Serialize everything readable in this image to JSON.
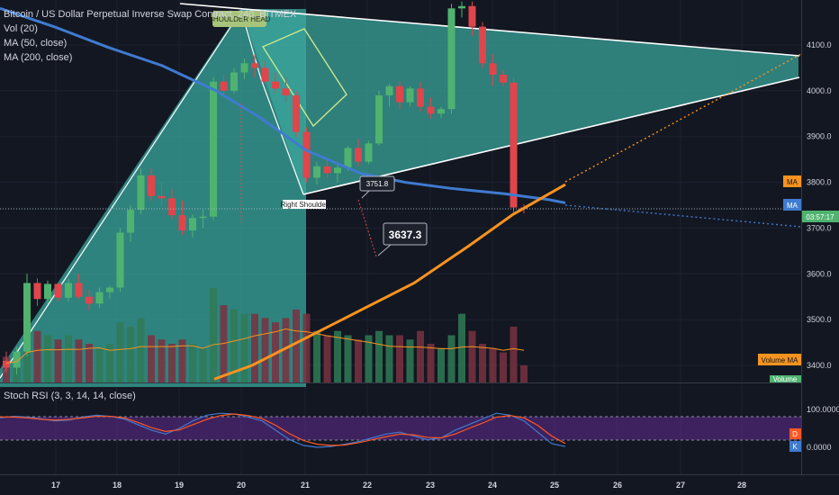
{
  "legend": {
    "symbol_line": "Bitcoin / US Dollar Perpetual Inverse Swap Contract, 240, BITMEX",
    "vol": "Vol (20)",
    "ma50": "MA (50, close)",
    "ma200": "MA (200, close)"
  },
  "stoch": {
    "title": "Stoch RSI (3, 3, 14, 14, close)",
    "ticks": [
      "100.0000",
      "0.0000"
    ],
    "d_tag": "D",
    "k_tag": "K"
  },
  "annotations": {
    "right_shoulder": "Right Shoulder",
    "target_big": "3637.3",
    "target_small": "3751.8",
    "top_badge": "SHOULDER HEAD"
  },
  "axis_tags": {
    "ma_orange": "MA",
    "ma_blue": "MA",
    "countdown": "03:57:17",
    "volume_ma": "Volume MA",
    "volume": "Volume"
  },
  "colors": {
    "background": "#131722",
    "up": "#4fb36f",
    "down": "#e0454c",
    "ma50": "#f7931e",
    "ma200": "#3f7bd0",
    "triangle_fill": "#3aa89e",
    "stoch_band": "#5b2a8a",
    "k_line": "#3f7bd0",
    "d_line": "#ff5722"
  },
  "chart_data": {
    "type": "candlestick",
    "timeframe": "240",
    "y_ticks": [
      3400,
      3500,
      3600,
      3700,
      3800,
      3900,
      4000,
      4100
    ],
    "x_ticks": [
      "17",
      "18",
      "19",
      "20",
      "21",
      "22",
      "23",
      "24",
      "25",
      "26",
      "27",
      "28"
    ],
    "candles": [
      {
        "o": 3410,
        "h": 3430,
        "l": 3385,
        "c": 3395
      },
      {
        "o": 3395,
        "h": 3440,
        "l": 3380,
        "c": 3430
      },
      {
        "o": 3430,
        "h": 3600,
        "l": 3420,
        "c": 3580
      },
      {
        "o": 3580,
        "h": 3590,
        "l": 3530,
        "c": 3545
      },
      {
        "o": 3545,
        "h": 3585,
        "l": 3535,
        "c": 3578
      },
      {
        "o": 3578,
        "h": 3580,
        "l": 3540,
        "c": 3548
      },
      {
        "o": 3548,
        "h": 3590,
        "l": 3540,
        "c": 3580
      },
      {
        "o": 3580,
        "h": 3600,
        "l": 3545,
        "c": 3550
      },
      {
        "o": 3550,
        "h": 3565,
        "l": 3520,
        "c": 3535
      },
      {
        "o": 3535,
        "h": 3570,
        "l": 3525,
        "c": 3560
      },
      {
        "o": 3560,
        "h": 3575,
        "l": 3545,
        "c": 3570
      },
      {
        "o": 3570,
        "h": 3700,
        "l": 3560,
        "c": 3690
      },
      {
        "o": 3690,
        "h": 3750,
        "l": 3670,
        "c": 3740
      },
      {
        "o": 3740,
        "h": 3830,
        "l": 3730,
        "c": 3815
      },
      {
        "o": 3815,
        "h": 3830,
        "l": 3760,
        "c": 3770
      },
      {
        "o": 3770,
        "h": 3800,
        "l": 3750,
        "c": 3765
      },
      {
        "o": 3765,
        "h": 3785,
        "l": 3720,
        "c": 3728
      },
      {
        "o": 3728,
        "h": 3760,
        "l": 3685,
        "c": 3695
      },
      {
        "o": 3695,
        "h": 3730,
        "l": 3680,
        "c": 3722
      },
      {
        "o": 3722,
        "h": 3740,
        "l": 3700,
        "c": 3725
      },
      {
        "o": 3725,
        "h": 4030,
        "l": 3718,
        "c": 4020
      },
      {
        "o": 4020,
        "h": 4035,
        "l": 3990,
        "c": 4000
      },
      {
        "o": 4000,
        "h": 4050,
        "l": 3995,
        "c": 4040
      },
      {
        "o": 4040,
        "h": 4070,
        "l": 4025,
        "c": 4060
      },
      {
        "o": 4060,
        "h": 4080,
        "l": 4030,
        "c": 4050
      },
      {
        "o": 4050,
        "h": 4065,
        "l": 4015,
        "c": 4020
      },
      {
        "o": 4020,
        "h": 4040,
        "l": 3995,
        "c": 4005
      },
      {
        "o": 4005,
        "h": 4030,
        "l": 3975,
        "c": 3990
      },
      {
        "o": 3990,
        "h": 4000,
        "l": 3900,
        "c": 3910
      },
      {
        "o": 3910,
        "h": 3920,
        "l": 3800,
        "c": 3810
      },
      {
        "o": 3810,
        "h": 3845,
        "l": 3795,
        "c": 3835
      },
      {
        "o": 3835,
        "h": 3850,
        "l": 3810,
        "c": 3820
      },
      {
        "o": 3820,
        "h": 3840,
        "l": 3800,
        "c": 3832
      },
      {
        "o": 3832,
        "h": 3880,
        "l": 3825,
        "c": 3875
      },
      {
        "o": 3875,
        "h": 3895,
        "l": 3835,
        "c": 3845
      },
      {
        "o": 3845,
        "h": 3890,
        "l": 3840,
        "c": 3885
      },
      {
        "o": 3885,
        "h": 4000,
        "l": 3880,
        "c": 3990
      },
      {
        "o": 3990,
        "h": 4015,
        "l": 3965,
        "c": 4010
      },
      {
        "o": 4010,
        "h": 4020,
        "l": 3960,
        "c": 3975
      },
      {
        "o": 3975,
        "h": 4010,
        "l": 3965,
        "c": 4005
      },
      {
        "o": 4005,
        "h": 4020,
        "l": 3955,
        "c": 3965
      },
      {
        "o": 3965,
        "h": 3985,
        "l": 3940,
        "c": 3950
      },
      {
        "o": 3950,
        "h": 3965,
        "l": 3940,
        "c": 3960
      },
      {
        "o": 3960,
        "h": 4190,
        "l": 3950,
        "c": 4180
      },
      {
        "o": 4180,
        "h": 4195,
        "l": 4160,
        "c": 4185
      },
      {
        "o": 4185,
        "h": 4195,
        "l": 4120,
        "c": 4140
      },
      {
        "o": 4140,
        "h": 4150,
        "l": 4050,
        "c": 4060
      },
      {
        "o": 4060,
        "h": 4080,
        "l": 4010,
        "c": 4035
      },
      {
        "o": 4035,
        "h": 4045,
        "l": 4010,
        "c": 4018
      },
      {
        "o": 4018,
        "h": 4030,
        "l": 3735,
        "c": 3745
      },
      {
        "o": 3745,
        "h": 3752,
        "l": 3732,
        "c": 3742
      }
    ],
    "volume": [
      30,
      35,
      75,
      60,
      55,
      50,
      55,
      50,
      45,
      40,
      45,
      70,
      65,
      75,
      55,
      50,
      45,
      50,
      45,
      40,
      110,
      90,
      85,
      80,
      80,
      75,
      70,
      75,
      85,
      80,
      60,
      55,
      60,
      55,
      50,
      55,
      60,
      55,
      55,
      50,
      60,
      45,
      40,
      55,
      80,
      60,
      45,
      40,
      35,
      65,
      20
    ]
  }
}
